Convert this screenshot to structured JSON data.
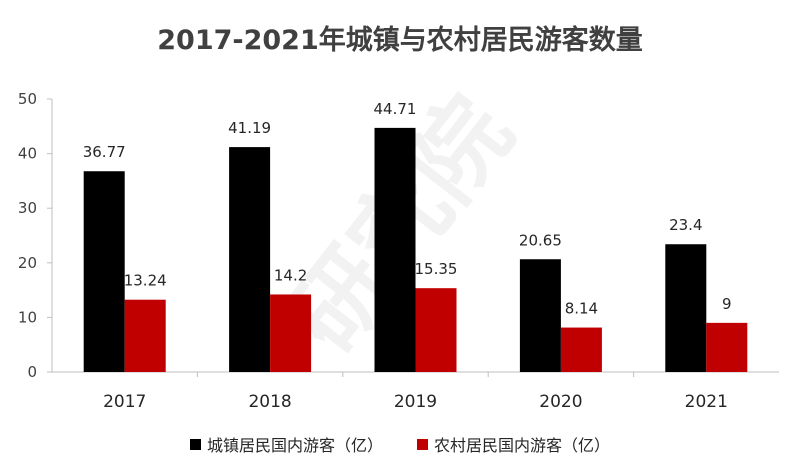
{
  "chart_data": {
    "type": "bar",
    "title": "2017-2021年城镇与农村居民游客数量",
    "categories": [
      "2017",
      "2018",
      "2019",
      "2020",
      "2021"
    ],
    "series": [
      {
        "name": "城镇居民国内游客（亿）",
        "color": "#000000",
        "values": [
          36.77,
          41.19,
          44.71,
          20.65,
          23.4
        ]
      },
      {
        "name": "农村居民国内游客（亿）",
        "color": "#c00000",
        "values": [
          13.24,
          14.2,
          15.35,
          8.14,
          9
        ]
      }
    ],
    "ylim": [
      0,
      50
    ],
    "yticks": [
      0,
      10,
      20,
      30,
      40,
      50
    ],
    "xlabel": "",
    "ylabel": "",
    "legend": "bottom",
    "watermark": "研究院"
  }
}
